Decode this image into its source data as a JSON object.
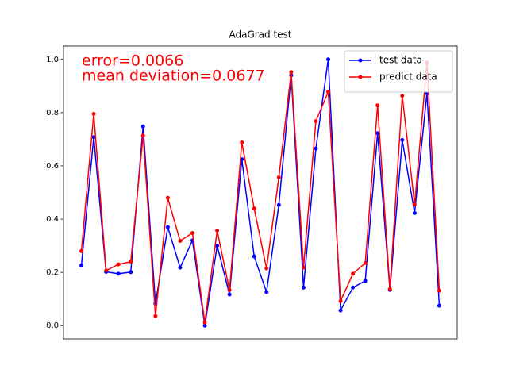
{
  "chart_data": {
    "type": "line",
    "title": "AdaGrad test",
    "annotations": [
      "error=0.0066",
      "mean deviation=0.0677"
    ],
    "annotation_color": "#ff0000",
    "x": [
      0,
      1,
      2,
      3,
      4,
      5,
      6,
      7,
      8,
      9,
      10,
      11,
      12,
      13,
      14,
      15,
      16,
      17,
      18,
      19,
      20,
      21,
      22,
      23,
      24,
      25,
      26,
      27,
      28,
      29
    ],
    "xlim": [
      -1.45,
      30.45
    ],
    "xticks": [],
    "ylim": [
      -0.05,
      1.05
    ],
    "yticks": [
      {
        "value": 0,
        "label": "0.0"
      },
      {
        "value": 0.2,
        "label": "0.2"
      },
      {
        "value": 0.4,
        "label": "0.4"
      },
      {
        "value": 0.6,
        "label": "0.6"
      },
      {
        "value": 0.8,
        "label": "0.8"
      },
      {
        "value": 1,
        "label": "1.0"
      }
    ],
    "legend": "upper right",
    "series": [
      {
        "name": "test data",
        "color": "#0000ff",
        "values": [
          0.226,
          0.708,
          0.202,
          0.195,
          0.201,
          0.748,
          0.083,
          0.37,
          0.218,
          0.32,
          0.0,
          0.3,
          0.117,
          0.625,
          0.26,
          0.126,
          0.453,
          0.94,
          0.143,
          0.665,
          1.0,
          0.057,
          0.143,
          0.168,
          0.723,
          0.134,
          0.697,
          0.423,
          0.873,
          0.075
        ]
      },
      {
        "name": "predict data",
        "color": "#ff0000",
        "values": [
          0.28,
          0.795,
          0.207,
          0.23,
          0.24,
          0.714,
          0.036,
          0.48,
          0.318,
          0.348,
          0.012,
          0.357,
          0.134,
          0.688,
          0.44,
          0.215,
          0.557,
          0.952,
          0.218,
          0.768,
          0.878,
          0.092,
          0.195,
          0.235,
          0.827,
          0.137,
          0.863,
          0.455,
          0.988,
          0.131
        ]
      }
    ]
  }
}
